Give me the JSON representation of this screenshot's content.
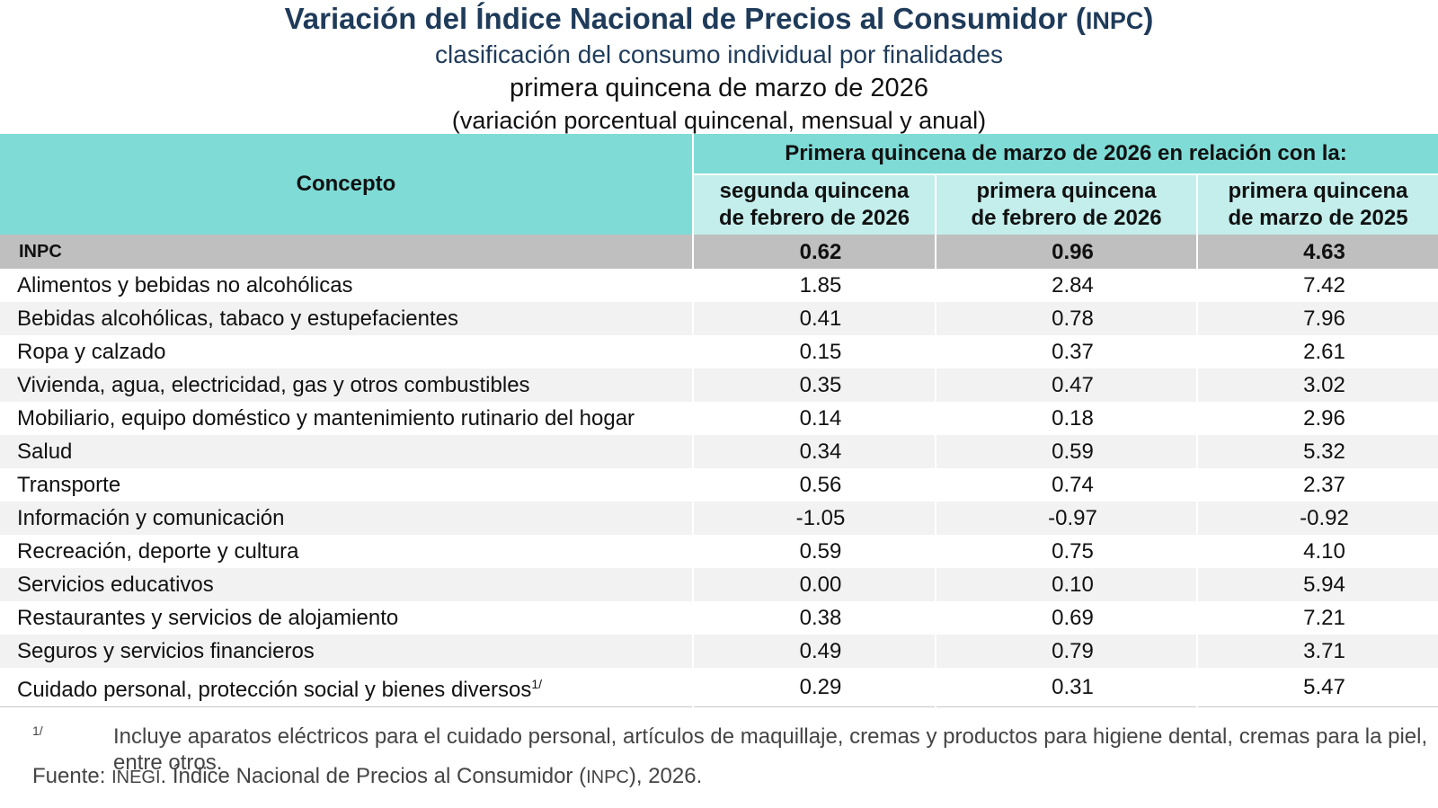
{
  "header": {
    "title": "Variación del Índice Nacional de Precios al Consumidor (",
    "title_abbr": "INPC",
    "title_end": ")",
    "subtitle1": "clasificación del consumo individual por finalidades",
    "subtitle2": "primera quincena de marzo de 2026",
    "subtitle3": "(variación porcentual quincenal, mensual y anual)"
  },
  "table": {
    "concept_header": "Concepto",
    "group_header": "Primera quincena de marzo de 2026 en relación con la:",
    "columns": [
      {
        "line1": "segunda quincena",
        "line2": "de febrero de 2026"
      },
      {
        "line1": "primera quincena",
        "line2": "de febrero de 2026"
      },
      {
        "line1": "primera quincena",
        "line2": "de marzo de 2025"
      }
    ],
    "rows": [
      {
        "label": "INPC",
        "values": [
          "0.62",
          "0.96",
          "4.63"
        ]
      },
      {
        "label": "Alimentos y bebidas no alcohólicas",
        "values": [
          "1.85",
          "2.84",
          "7.42"
        ]
      },
      {
        "label": "Bebidas alcohólicas, tabaco y estupefacientes",
        "values": [
          "0.41",
          "0.78",
          "7.96"
        ]
      },
      {
        "label": "Ropa y calzado",
        "values": [
          "0.15",
          "0.37",
          "2.61"
        ]
      },
      {
        "label": "Vivienda, agua, electricidad, gas y otros combustibles",
        "values": [
          "0.35",
          "0.47",
          "3.02"
        ]
      },
      {
        "label": "Mobiliario, equipo doméstico y mantenimiento rutinario del hogar",
        "values": [
          "0.14",
          "0.18",
          "2.96"
        ]
      },
      {
        "label": "Salud",
        "values": [
          "0.34",
          "0.59",
          "5.32"
        ]
      },
      {
        "label": "Transporte",
        "values": [
          "0.56",
          "0.74",
          "2.37"
        ]
      },
      {
        "label": "Información y comunicación",
        "values": [
          "-1.05",
          "-0.97",
          "-0.92"
        ]
      },
      {
        "label": "Recreación, deporte y cultura",
        "values": [
          "0.59",
          "0.75",
          "4.10"
        ]
      },
      {
        "label": "Servicios educativos",
        "values": [
          "0.00",
          "0.10",
          "5.94"
        ]
      },
      {
        "label": "Restaurantes y servicios de alojamiento",
        "values": [
          "0.38",
          "0.69",
          "7.21"
        ]
      },
      {
        "label": "Seguros y servicios financieros",
        "values": [
          "0.49",
          "0.79",
          "3.71"
        ]
      },
      {
        "label": "Cuidado personal, protección social y bienes diversos",
        "label_sup": "1/",
        "values": [
          "0.29",
          "0.31",
          "5.47"
        ]
      }
    ]
  },
  "footnote": {
    "mark": "1/",
    "text": "Incluye aparatos eléctricos para el cuidado personal, artículos de maquillaje, cremas y productos para higiene dental, cremas para la piel, entre otros."
  },
  "source": {
    "label": "Fuente:",
    "org": "INEGI",
    "text": ". Índice Nacional de Precios al Consumidor (",
    "abbr": "INPC",
    "end": "), 2026."
  },
  "colors": {
    "header_bg": "#7fdbd6",
    "subheader_bg": "#c3eeeb",
    "inpc_row_bg": "#bfbfbf",
    "alt_row_bg": "#f2f2f2",
    "title_color": "#1f3b5a"
  }
}
